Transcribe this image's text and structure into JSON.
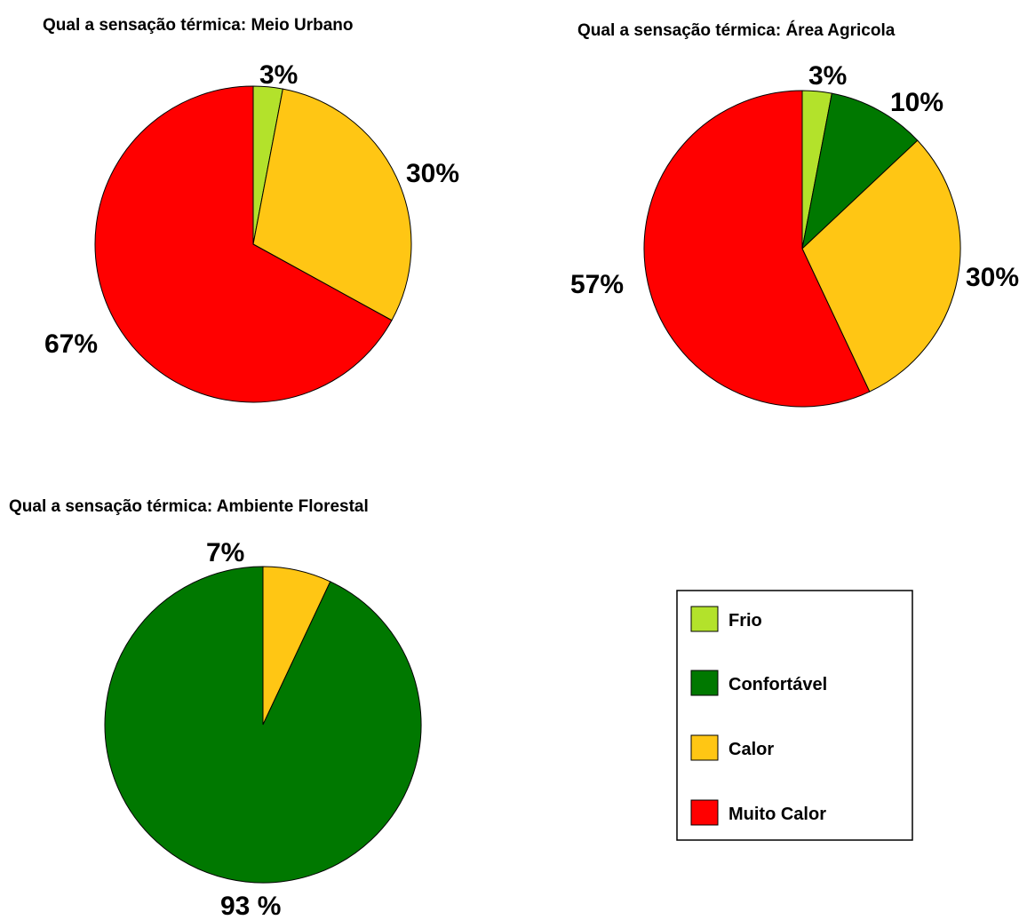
{
  "categories": [
    {
      "key": "frio",
      "label": "Frio",
      "color": "#b3e22b"
    },
    {
      "key": "confortavel",
      "label": "Confortável",
      "color": "#007800"
    },
    {
      "key": "calor",
      "label": "Calor",
      "color": "#ffc614"
    },
    {
      "key": "muito_calor",
      "label": "Muito Calor",
      "color": "#ff0000"
    }
  ],
  "chart_data": [
    {
      "type": "pie",
      "title": "Qual a sensação térmica: Meio Urbano",
      "slices": [
        {
          "category": "Frio",
          "value": 3,
          "label": "3%"
        },
        {
          "category": "Calor",
          "value": 30,
          "label": "30%"
        },
        {
          "category": "Muito Calor",
          "value": 67,
          "label": "67%"
        }
      ]
    },
    {
      "type": "pie",
      "title": "Qual a sensação térmica: Área Agricola",
      "slices": [
        {
          "category": "Frio",
          "value": 3,
          "label": "3%"
        },
        {
          "category": "Confortável",
          "value": 10,
          "label": "10%"
        },
        {
          "category": "Calor",
          "value": 30,
          "label": "30%"
        },
        {
          "category": "Muito Calor",
          "value": 57,
          "label": "57%"
        }
      ]
    },
    {
      "type": "pie",
      "title": "Qual a sensação térmica: Ambiente Florestal",
      "slices": [
        {
          "category": "Calor",
          "value": 7,
          "label": "7%"
        },
        {
          "category": "Confortável",
          "value": 93,
          "label": "93 %"
        }
      ]
    }
  ],
  "legend": {
    "items": [
      "Frio",
      "Confortável",
      "Calor",
      "Muito Calor"
    ]
  }
}
